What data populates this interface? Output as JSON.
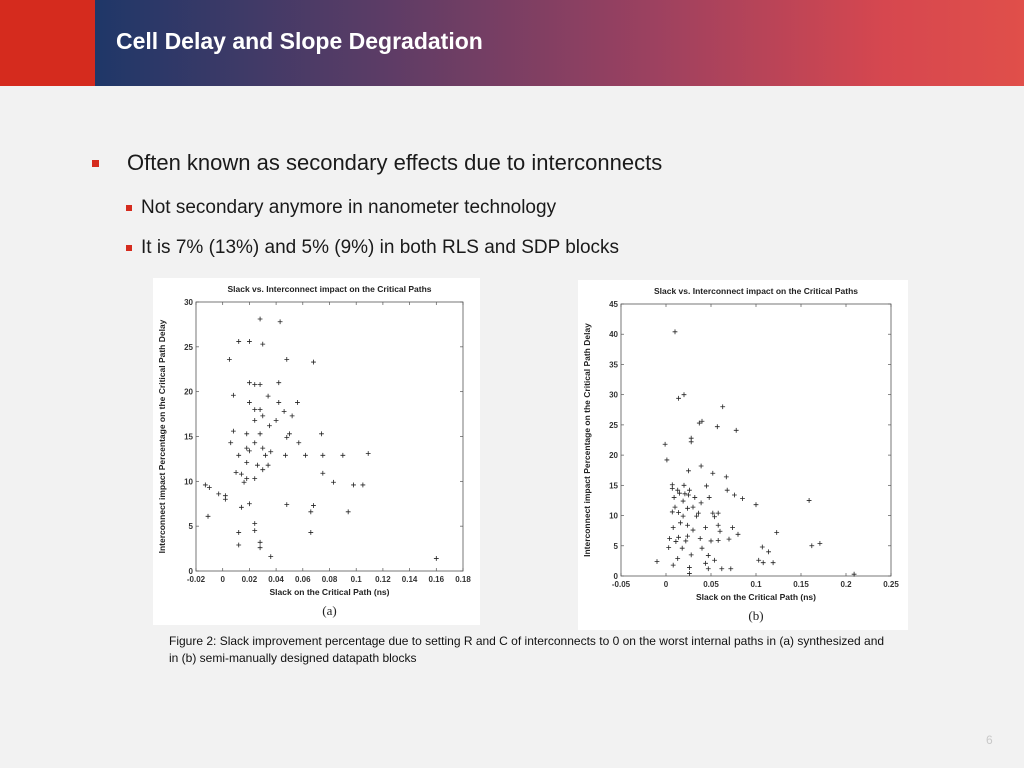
{
  "slide": {
    "title": "Cell Delay and Slope Degradation",
    "bullets": [
      "Often known as secondary effects due to interconnects",
      "Not secondary anymore in nanometer technology",
      "It is 7% (13%) and 5% (9%) in both RLS and SDP blocks"
    ],
    "caption": "Figure 2: Slack improvement percentage due to setting R and C of interconnects to 0 on the worst internal paths in (a) synthesized and in (b) semi-manually designed datapath blocks",
    "page_number": "6"
  },
  "colors": {
    "accent_red": "#d52b1e",
    "header_blue": "#1f3768",
    "header_red": "#e04f4a"
  },
  "chart_data": [
    {
      "type": "scatter",
      "title": "Slack vs. Interconnect impact on the Critical Paths",
      "xlabel": "Slack on the Critical Path (ns)",
      "ylabel": "Interconnect impact Percentage on the Critical Path Delay",
      "sublabel": "(a)",
      "marker": "+",
      "xlim": [
        -0.02,
        0.18
      ],
      "ylim": [
        0,
        30
      ],
      "xticks": [
        "-0.02",
        "0",
        "0.02",
        "0.04",
        "0.06",
        "0.08",
        "0.1",
        "0.12",
        "0.14",
        "0.16",
        "0.18"
      ],
      "xtick_values": [
        -0.02,
        0,
        0.02,
        0.04,
        0.06,
        0.08,
        0.1,
        0.12,
        0.14,
        0.16,
        0.18
      ],
      "yticks": [
        "0",
        "5",
        "10",
        "15",
        "20",
        "25",
        "30"
      ],
      "ytick_values": [
        0,
        5,
        10,
        15,
        20,
        25,
        30
      ],
      "points": [
        [
          0.028,
          28.1
        ],
        [
          0.043,
          27.8
        ],
        [
          0.012,
          25.6
        ],
        [
          0.02,
          25.6
        ],
        [
          0.03,
          25.3
        ],
        [
          0.005,
          23.6
        ],
        [
          0.048,
          23.6
        ],
        [
          0.068,
          23.3
        ],
        [
          0.02,
          21.0
        ],
        [
          0.024,
          20.8
        ],
        [
          0.028,
          20.8
        ],
        [
          0.042,
          21.0
        ],
        [
          0.008,
          19.6
        ],
        [
          0.034,
          19.5
        ],
        [
          0.02,
          18.8
        ],
        [
          0.042,
          18.8
        ],
        [
          0.056,
          18.8
        ],
        [
          0.024,
          18.0
        ],
        [
          0.028,
          18.0
        ],
        [
          0.046,
          17.8
        ],
        [
          0.052,
          17.3
        ],
        [
          0.03,
          17.3
        ],
        [
          0.024,
          16.8
        ],
        [
          0.04,
          16.8
        ],
        [
          0.035,
          16.2
        ],
        [
          0.008,
          15.6
        ],
        [
          0.018,
          15.3
        ],
        [
          0.028,
          15.3
        ],
        [
          0.05,
          15.3
        ],
        [
          0.074,
          15.3
        ],
        [
          0.048,
          14.9
        ],
        [
          0.006,
          14.3
        ],
        [
          0.024,
          14.3
        ],
        [
          0.057,
          14.3
        ],
        [
          0.018,
          13.7
        ],
        [
          0.02,
          13.4
        ],
        [
          0.03,
          13.7
        ],
        [
          0.036,
          13.3
        ],
        [
          0.012,
          12.9
        ],
        [
          0.032,
          12.9
        ],
        [
          0.047,
          12.9
        ],
        [
          0.062,
          12.9
        ],
        [
          0.075,
          12.9
        ],
        [
          0.09,
          12.9
        ],
        [
          0.109,
          13.1
        ],
        [
          0.018,
          12.1
        ],
        [
          0.026,
          11.8
        ],
        [
          0.034,
          11.8
        ],
        [
          0.03,
          11.3
        ],
        [
          0.01,
          11.0
        ],
        [
          0.014,
          10.8
        ],
        [
          0.075,
          10.9
        ],
        [
          0.018,
          10.3
        ],
        [
          0.024,
          10.3
        ],
        [
          0.016,
          9.9
        ],
        [
          -0.013,
          9.6
        ],
        [
          -0.01,
          9.3
        ],
        [
          -0.003,
          8.6
        ],
        [
          0.002,
          8.4
        ],
        [
          0.083,
          9.9
        ],
        [
          0.098,
          9.6
        ],
        [
          0.105,
          9.6
        ],
        [
          0.002,
          8.0
        ],
        [
          0.02,
          7.5
        ],
        [
          0.014,
          7.1
        ],
        [
          0.048,
          7.4
        ],
        [
          0.068,
          7.3
        ],
        [
          0.066,
          6.6
        ],
        [
          0.094,
          6.6
        ],
        [
          -0.011,
          6.1
        ],
        [
          0.024,
          5.3
        ],
        [
          0.024,
          4.5
        ],
        [
          0.012,
          4.3
        ],
        [
          0.066,
          4.3
        ],
        [
          0.028,
          3.2
        ],
        [
          0.012,
          2.9
        ],
        [
          0.028,
          2.6
        ],
        [
          0.036,
          1.6
        ],
        [
          0.16,
          1.4
        ]
      ]
    },
    {
      "type": "scatter",
      "title": "Slack vs. Interconnect impact on the Critical Paths",
      "xlabel": "Slack on the Critical Path (ns)",
      "ylabel": "Interconnect impact Percentage on the Critical Path Delay",
      "sublabel": "(b)",
      "marker": "+",
      "xlim": [
        -0.05,
        0.25
      ],
      "ylim": [
        0,
        45
      ],
      "xticks": [
        "-0.05",
        "0",
        "0.05",
        "0.1",
        "0.15",
        "0.2",
        "0.25"
      ],
      "xtick_values": [
        -0.05,
        0,
        0.05,
        0.1,
        0.15,
        0.2,
        0.25
      ],
      "yticks": [
        "0",
        "5",
        "10",
        "15",
        "20",
        "25",
        "30",
        "35",
        "40",
        "45"
      ],
      "ytick_values": [
        0,
        5,
        10,
        15,
        20,
        25,
        30,
        35,
        40,
        45
      ],
      "points": [
        [
          0.01,
          40.4
        ],
        [
          0.02,
          30.0
        ],
        [
          0.014,
          29.4
        ],
        [
          0.063,
          28.0
        ],
        [
          0.04,
          25.6
        ],
        [
          0.037,
          25.3
        ],
        [
          0.057,
          24.7
        ],
        [
          0.078,
          24.1
        ],
        [
          0.028,
          22.8
        ],
        [
          0.028,
          22.2
        ],
        [
          -0.001,
          21.8
        ],
        [
          0.001,
          19.2
        ],
        [
          0.039,
          18.2
        ],
        [
          0.025,
          17.4
        ],
        [
          0.052,
          17.0
        ],
        [
          0.067,
          16.4
        ],
        [
          0.007,
          15.1
        ],
        [
          0.02,
          15.0
        ],
        [
          0.045,
          14.9
        ],
        [
          0.007,
          14.5
        ],
        [
          0.013,
          14.2
        ],
        [
          0.026,
          14.2
        ],
        [
          0.068,
          14.2
        ],
        [
          0.015,
          13.7
        ],
        [
          0.021,
          13.6
        ],
        [
          0.025,
          13.4
        ],
        [
          0.009,
          13.0
        ],
        [
          0.032,
          13.0
        ],
        [
          0.048,
          13.0
        ],
        [
          0.076,
          13.4
        ],
        [
          0.085,
          12.8
        ],
        [
          0.019,
          12.4
        ],
        [
          0.039,
          12.1
        ],
        [
          0.01,
          11.4
        ],
        [
          0.03,
          11.4
        ],
        [
          0.024,
          11.2
        ],
        [
          0.007,
          10.6
        ],
        [
          0.014,
          10.5
        ],
        [
          0.052,
          10.4
        ],
        [
          0.036,
          10.4
        ],
        [
          0.058,
          10.4
        ],
        [
          0.019,
          9.9
        ],
        [
          0.034,
          9.9
        ],
        [
          0.054,
          9.8
        ],
        [
          0.1,
          11.8
        ],
        [
          0.016,
          8.8
        ],
        [
          0.024,
          8.4
        ],
        [
          0.058,
          8.4
        ],
        [
          0.008,
          8.0
        ],
        [
          0.044,
          8.0
        ],
        [
          0.074,
          8.0
        ],
        [
          0.03,
          7.6
        ],
        [
          0.06,
          7.4
        ],
        [
          0.024,
          6.6
        ],
        [
          0.014,
          6.4
        ],
        [
          0.004,
          6.2
        ],
        [
          0.038,
          6.2
        ],
        [
          0.08,
          6.9
        ],
        [
          0.123,
          7.2
        ],
        [
          0.011,
          5.7
        ],
        [
          0.022,
          5.8
        ],
        [
          0.05,
          5.8
        ],
        [
          0.058,
          5.9
        ],
        [
          0.07,
          6.1
        ],
        [
          0.003,
          4.7
        ],
        [
          0.018,
          4.6
        ],
        [
          0.04,
          4.6
        ],
        [
          0.107,
          4.8
        ],
        [
          0.114,
          4.0
        ],
        [
          0.028,
          3.5
        ],
        [
          0.047,
          3.4
        ],
        [
          0.162,
          5.0
        ],
        [
          0.171,
          5.4
        ],
        [
          0.159,
          12.5
        ],
        [
          0.013,
          2.9
        ],
        [
          0.054,
          2.6
        ],
        [
          0.103,
          2.6
        ],
        [
          0.108,
          2.2
        ],
        [
          -0.01,
          2.4
        ],
        [
          0.008,
          1.8
        ],
        [
          0.026,
          1.4
        ],
        [
          0.047,
          1.2
        ],
        [
          0.062,
          1.2
        ],
        [
          0.072,
          1.2
        ],
        [
          0.026,
          0.4
        ],
        [
          0.209,
          0.3
        ],
        [
          0.044,
          2.1
        ],
        [
          0.119,
          2.2
        ]
      ]
    }
  ]
}
